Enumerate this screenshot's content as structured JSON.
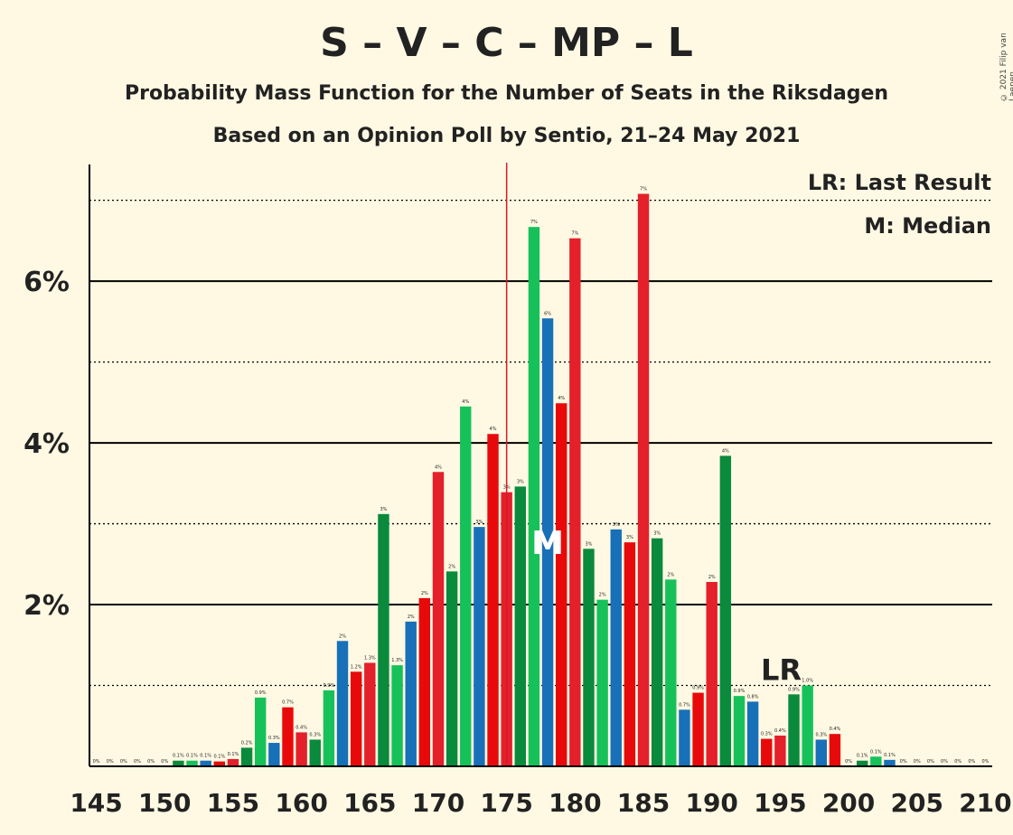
{
  "title": "S – V – C – MP – L",
  "subtitle1": "Probability Mass Function for the Number of Seats in the Riksdagen",
  "subtitle2": "Based on an Opinion Poll by Sentio, 21–24 May 2021",
  "credit": "© 2021 Filip van Laenen",
  "legend": {
    "lr": "LR: Last Result",
    "m": "M: Median"
  },
  "markers": {
    "lr_text": "LR",
    "m_text": "M"
  },
  "colors": {
    "background": "#FFF9E3",
    "palette": [
      "#E4202A",
      "#0A8A3C",
      "#17C15A",
      "#1870B8",
      "#E80A0A"
    ],
    "majority_line": "#D8182B",
    "grid": "#000000"
  },
  "chart_data": {
    "type": "bar",
    "xlabel": "",
    "ylabel": "",
    "xlim": [
      145,
      210
    ],
    "ylim": [
      0,
      7.7
    ],
    "x_ticks": [
      145,
      150,
      155,
      160,
      165,
      170,
      175,
      180,
      185,
      190,
      195,
      200,
      205,
      210
    ],
    "y_ticks": [
      {
        "value": 2,
        "label": "2%"
      },
      {
        "value": 4,
        "label": "4%"
      },
      {
        "value": 6,
        "label": "6%"
      }
    ],
    "dotted_gridlines": [
      1,
      3,
      5,
      7
    ],
    "majority_seat": 175,
    "median_seat": 178,
    "last_result_seat": 196,
    "x": [
      145,
      146,
      147,
      148,
      149,
      150,
      151,
      152,
      153,
      154,
      155,
      156,
      157,
      158,
      159,
      160,
      161,
      162,
      163,
      164,
      165,
      166,
      167,
      168,
      169,
      170,
      171,
      172,
      173,
      174,
      175,
      176,
      177,
      178,
      179,
      180,
      181,
      182,
      183,
      184,
      185,
      186,
      187,
      188,
      189,
      190,
      191,
      192,
      193,
      194,
      195,
      196,
      197,
      198,
      199,
      200,
      201,
      202,
      203,
      204,
      205,
      206,
      207,
      208,
      209,
      210
    ],
    "values": [
      0,
      0,
      0,
      0,
      0,
      0,
      0.07,
      0.07,
      0.07,
      0.06,
      0.09,
      0.23,
      0.85,
      0.29,
      0.73,
      0.42,
      0.33,
      0.94,
      1.55,
      1.17,
      1.28,
      3.12,
      1.25,
      1.79,
      2.08,
      3.64,
      2.41,
      4.45,
      2.96,
      4.11,
      3.39,
      3.46,
      6.67,
      5.54,
      4.49,
      6.53,
      2.69,
      2.06,
      2.93,
      2.77,
      7.08,
      2.82,
      2.31,
      0.7,
      0.91,
      2.28,
      3.84,
      0.87,
      0.8,
      0.34,
      0.38,
      0.89,
      1.0,
      0.33,
      0.4,
      0,
      0.07,
      0.12,
      0.08,
      0,
      0,
      0,
      0,
      0,
      0,
      0
    ],
    "labels": [
      "0%",
      "0%",
      "0%",
      "0%",
      "0%",
      "0%",
      "0.1%",
      "0.1%",
      "0.1%",
      "0.1%",
      "0.1%",
      "0.2%",
      "0.9%",
      "0.3%",
      "0.7%",
      "0.4%",
      "0.3%",
      "0.9%",
      "2%",
      "1.2%",
      "1.3%",
      "3%",
      "1.3%",
      "2%",
      "2%",
      "4%",
      "2%",
      "4%",
      "3%",
      "4%",
      "3%",
      "3%",
      "7%",
      "6%",
      "4%",
      "7%",
      "3%",
      "2%",
      "3%",
      "3%",
      "7%",
      "3%",
      "2%",
      "0.7%",
      "0.9%",
      "2%",
      "4%",
      "0.9%",
      "0.8%",
      "0.3%",
      "0.4%",
      "0.9%",
      "1.0%",
      "0.3%",
      "0.4%",
      "0%",
      "0.1%",
      "0.1%",
      "0.1%",
      "0%",
      "0%",
      "0%",
      "0%",
      "0%",
      "0%",
      "0%"
    ]
  }
}
